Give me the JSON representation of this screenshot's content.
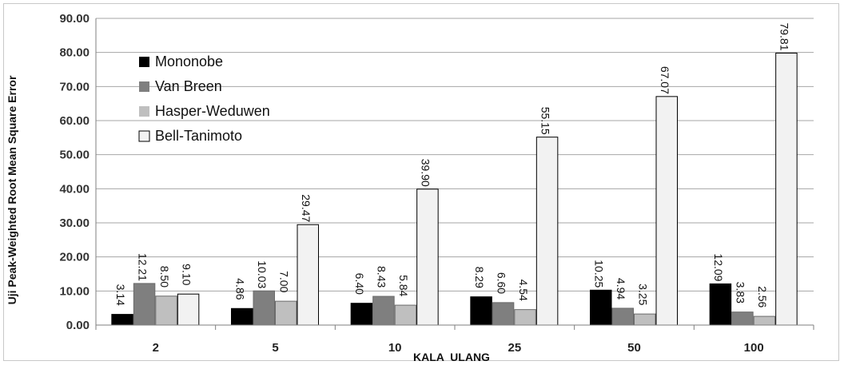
{
  "chart_data": {
    "type": "bar",
    "title": "",
    "xlabel": "KALA  ULANG",
    "ylabel": "Uji Peak-Weighted Root Mean Square Error",
    "ylim": [
      0,
      90
    ],
    "yticks": [
      "0.00",
      "10.00",
      "20.00",
      "30.00",
      "40.00",
      "50.00",
      "60.00",
      "70.00",
      "80.00",
      "90.00"
    ],
    "categories": [
      "2",
      "5",
      "10",
      "25",
      "50",
      "100"
    ],
    "grid": "horizontal",
    "legend_position": "top-left",
    "series": [
      {
        "name": "Mononobe",
        "color": "#000000",
        "values": [
          3.14,
          4.86,
          6.4,
          8.29,
          10.25,
          12.09
        ],
        "labels": [
          "3.14",
          "4.86",
          "6.40",
          "8.29",
          "10.25",
          "12.09"
        ]
      },
      {
        "name": "Van Breen",
        "color": "#7f7f7f",
        "values": [
          12.21,
          10.03,
          8.43,
          6.6,
          4.94,
          3.83
        ],
        "labels": [
          "12.21",
          "10.03",
          "8.43",
          "6.60",
          "4.94",
          "3.83"
        ]
      },
      {
        "name": "Hasper-Weduwen",
        "color": "#bfbfbf",
        "values": [
          8.5,
          7.0,
          5.84,
          4.54,
          3.25,
          2.56
        ],
        "labels": [
          "8.50",
          "7.00",
          "5.84",
          "4.54",
          "3.25",
          "2.56"
        ]
      },
      {
        "name": "Bell-Tanimoto",
        "color": "#f2f2f2",
        "values": [
          9.1,
          29.47,
          39.9,
          55.15,
          67.07,
          79.81
        ],
        "labels": [
          "9.10",
          "29.47",
          "39.90",
          "55.15",
          "67.07",
          "79.81"
        ]
      }
    ]
  }
}
